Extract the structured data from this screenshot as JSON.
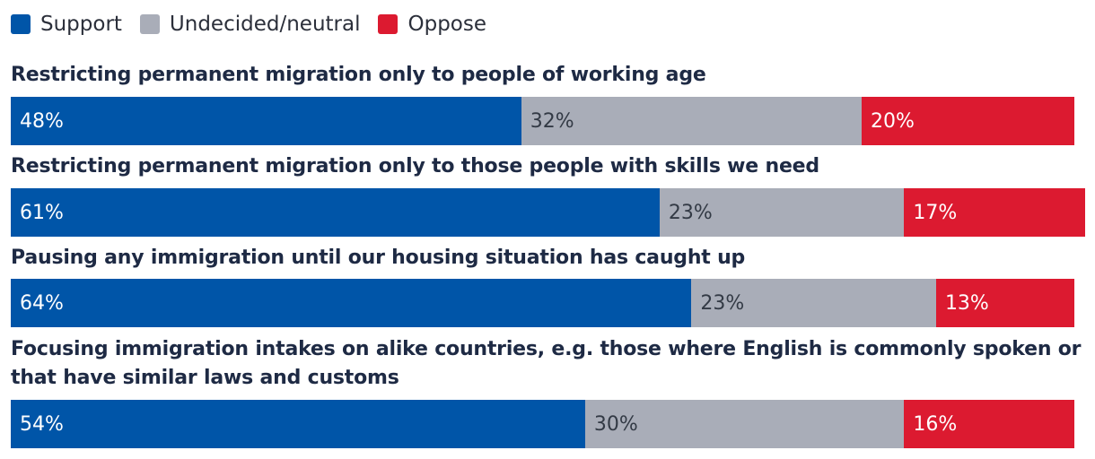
{
  "chart_data": {
    "type": "bar",
    "orientation": "horizontal-stacked",
    "legend": [
      {
        "name": "Support",
        "color": "#0055a8"
      },
      {
        "name": "Undecided/neutral",
        "color": "#a9adb8"
      },
      {
        "name": "Oppose",
        "color": "#dc1a30"
      }
    ],
    "legend_position": "top-left",
    "rows": [
      {
        "label": "Restricting permanent migration only to people of working age",
        "values": [
          48,
          32,
          20
        ],
        "labels": [
          "48%",
          "32%",
          "20%"
        ]
      },
      {
        "label": "Restricting permanent migration only to those people with skills we need",
        "values": [
          61,
          23,
          17
        ],
        "labels": [
          "61%",
          "23%",
          "17%"
        ]
      },
      {
        "label": "Pausing any immigration until our housing situation has caught up",
        "values": [
          64,
          23,
          13
        ],
        "labels": [
          "64%",
          "23%",
          "13%"
        ]
      },
      {
        "label": "Focusing immigration intakes on alike countries, e.g. those where English is commonly spoken or that have similar laws and customs",
        "values": [
          54,
          30,
          16
        ],
        "labels": [
          "54%",
          "30%",
          "16%"
        ]
      }
    ]
  }
}
